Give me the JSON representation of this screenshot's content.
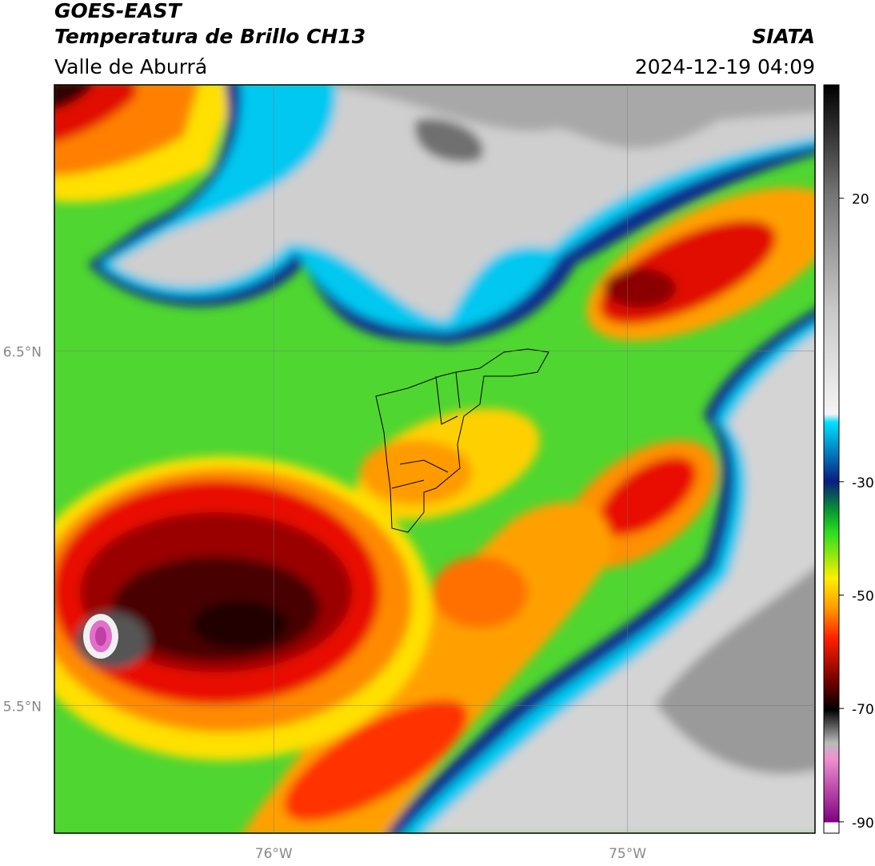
{
  "header": {
    "satellite": "GOES-EAST",
    "product": "Temperatura de Brillo CH13",
    "region": "Valle de Aburrá",
    "agency": "SIATA",
    "datetime": "2024-12-19 04:09"
  },
  "map": {
    "xlim": [
      -76.62,
      -74.47
    ],
    "ylim": [
      5.14,
      7.25
    ],
    "xticks": [
      {
        "value": -76,
        "label": "76°W"
      },
      {
        "value": -75,
        "label": "75°W"
      }
    ],
    "yticks": [
      {
        "value": 6.5,
        "label": "6.5°N"
      },
      {
        "value": 5.5,
        "label": "5.5°N"
      }
    ],
    "grid": true
  },
  "colorbar": {
    "lim": [
      -92,
      40
    ],
    "ticks": [
      20,
      -30,
      -50,
      -70,
      -90
    ]
  }
}
